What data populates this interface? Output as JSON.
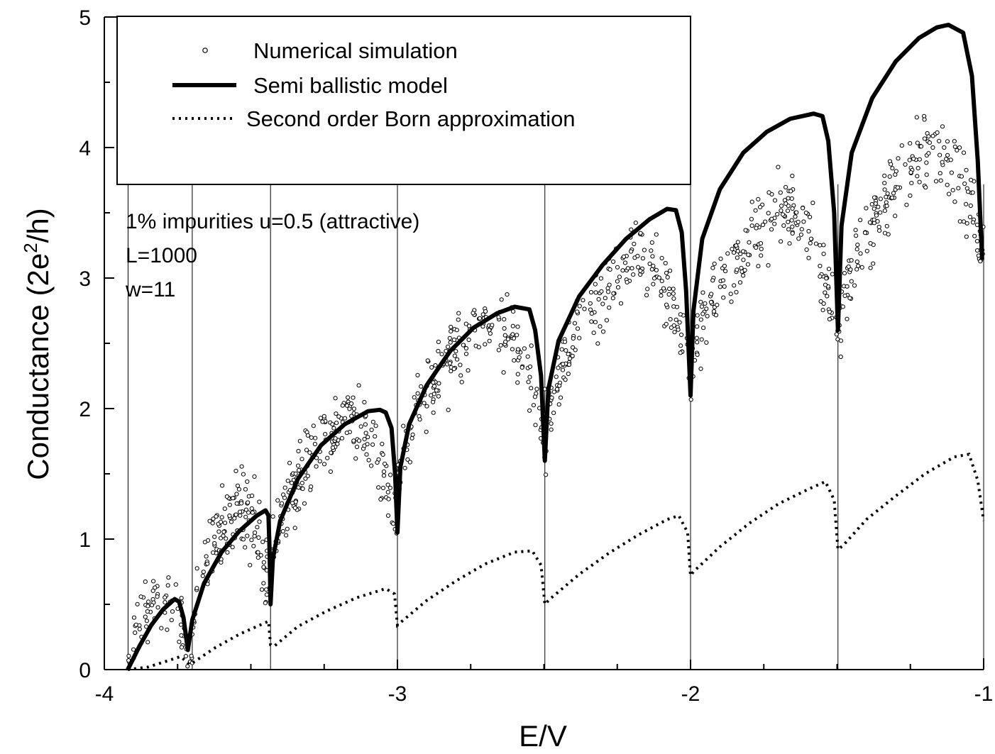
{
  "chart_data": {
    "type": "scatter",
    "xlabel": "E/V",
    "ylabel": "Conductance (2e²/h)",
    "xlim": [
      -4,
      -1
    ],
    "ylim": [
      0,
      5
    ],
    "xticks": [
      "-4",
      "-3",
      "-2",
      "-1"
    ],
    "yticks": [
      "0",
      "1",
      "2",
      "3",
      "4",
      "5"
    ],
    "subband_thresholds": [
      -3.919,
      -3.7,
      -3.433,
      -3.0,
      -2.497,
      -2.0,
      -1.497,
      -1.0
    ],
    "legend": {
      "position": "top-left",
      "entries": [
        {
          "label": "Numerical simulation",
          "style": "open-circle"
        },
        {
          "label": "Semi ballistic model",
          "style": "thick-solid"
        },
        {
          "label": "Second order Born approximation",
          "style": "dotted"
        }
      ]
    },
    "annotations": [
      "1% impurities u=0.5 (attractive)",
      "L=1000",
      "w=11"
    ],
    "series": [
      {
        "name": "Semi ballistic model",
        "points": [
          [
            -3.92,
            0.0
          ],
          [
            -3.88,
            0.18
          ],
          [
            -3.84,
            0.34
          ],
          [
            -3.8,
            0.46
          ],
          [
            -3.76,
            0.54
          ],
          [
            -3.745,
            0.52
          ],
          [
            -3.73,
            0.4
          ],
          [
            -3.715,
            0.15
          ],
          [
            -3.7,
            0.38
          ],
          [
            -3.66,
            0.66
          ],
          [
            -3.6,
            0.9
          ],
          [
            -3.54,
            1.06
          ],
          [
            -3.48,
            1.18
          ],
          [
            -3.45,
            1.22
          ],
          [
            -3.44,
            1.18
          ],
          [
            -3.436,
            0.9
          ],
          [
            -3.433,
            0.5
          ],
          [
            -3.425,
            0.85
          ],
          [
            -3.4,
            1.14
          ],
          [
            -3.34,
            1.46
          ],
          [
            -3.26,
            1.72
          ],
          [
            -3.18,
            1.88
          ],
          [
            -3.1,
            1.98
          ],
          [
            -3.06,
            1.99
          ],
          [
            -3.04,
            1.97
          ],
          [
            -3.02,
            1.85
          ],
          [
            -3.008,
            1.5
          ],
          [
            -3.0,
            1.05
          ],
          [
            -2.99,
            1.55
          ],
          [
            -2.96,
            1.88
          ],
          [
            -2.9,
            2.18
          ],
          [
            -2.82,
            2.44
          ],
          [
            -2.74,
            2.62
          ],
          [
            -2.66,
            2.73
          ],
          [
            -2.6,
            2.78
          ],
          [
            -2.55,
            2.76
          ],
          [
            -2.53,
            2.6
          ],
          [
            -2.51,
            2.25
          ],
          [
            -2.497,
            1.6
          ],
          [
            -2.485,
            2.15
          ],
          [
            -2.45,
            2.52
          ],
          [
            -2.38,
            2.86
          ],
          [
            -2.3,
            3.1
          ],
          [
            -2.22,
            3.3
          ],
          [
            -2.14,
            3.45
          ],
          [
            -2.08,
            3.53
          ],
          [
            -2.05,
            3.52
          ],
          [
            -2.03,
            3.35
          ],
          [
            -2.015,
            2.9
          ],
          [
            -2.0,
            2.1
          ],
          [
            -1.99,
            2.75
          ],
          [
            -1.96,
            3.3
          ],
          [
            -1.9,
            3.68
          ],
          [
            -1.82,
            3.96
          ],
          [
            -1.74,
            4.12
          ],
          [
            -1.66,
            4.22
          ],
          [
            -1.58,
            4.26
          ],
          [
            -1.55,
            4.24
          ],
          [
            -1.53,
            4.05
          ],
          [
            -1.51,
            3.5
          ],
          [
            -1.497,
            2.6
          ],
          [
            -1.485,
            3.4
          ],
          [
            -1.45,
            3.96
          ],
          [
            -1.38,
            4.38
          ],
          [
            -1.3,
            4.66
          ],
          [
            -1.22,
            4.84
          ],
          [
            -1.16,
            4.92
          ],
          [
            -1.12,
            4.94
          ],
          [
            -1.07,
            4.88
          ],
          [
            -1.04,
            4.55
          ],
          [
            -1.02,
            3.9
          ],
          [
            -1.005,
            3.14
          ]
        ]
      },
      {
        "name": "Second order Born approximation",
        "points": [
          [
            -3.92,
            0.0
          ],
          [
            -3.85,
            0.02
          ],
          [
            -3.78,
            0.07
          ],
          [
            -3.74,
            0.1
          ],
          [
            -3.71,
            0.04
          ],
          [
            -3.7,
            0.05
          ],
          [
            -3.62,
            0.17
          ],
          [
            -3.54,
            0.27
          ],
          [
            -3.46,
            0.35
          ],
          [
            -3.44,
            0.37
          ],
          [
            -3.433,
            0.19
          ],
          [
            -3.42,
            0.18
          ],
          [
            -3.34,
            0.33
          ],
          [
            -3.24,
            0.45
          ],
          [
            -3.14,
            0.55
          ],
          [
            -3.04,
            0.62
          ],
          [
            -3.01,
            0.58
          ],
          [
            -3.0,
            0.34
          ],
          [
            -2.99,
            0.36
          ],
          [
            -2.9,
            0.53
          ],
          [
            -2.8,
            0.68
          ],
          [
            -2.7,
            0.81
          ],
          [
            -2.6,
            0.9
          ],
          [
            -2.54,
            0.91
          ],
          [
            -2.51,
            0.8
          ],
          [
            -2.497,
            0.5
          ],
          [
            -2.48,
            0.54
          ],
          [
            -2.38,
            0.73
          ],
          [
            -2.28,
            0.89
          ],
          [
            -2.18,
            1.03
          ],
          [
            -2.08,
            1.15
          ],
          [
            -2.04,
            1.18
          ],
          [
            -2.01,
            1.05
          ],
          [
            -2.0,
            0.72
          ],
          [
            -1.99,
            0.75
          ],
          [
            -1.9,
            0.94
          ],
          [
            -1.8,
            1.12
          ],
          [
            -1.7,
            1.27
          ],
          [
            -1.6,
            1.38
          ],
          [
            -1.54,
            1.44
          ],
          [
            -1.51,
            1.3
          ],
          [
            -1.497,
            0.92
          ],
          [
            -1.48,
            0.95
          ],
          [
            -1.4,
            1.15
          ],
          [
            -1.3,
            1.33
          ],
          [
            -1.2,
            1.5
          ],
          [
            -1.1,
            1.63
          ],
          [
            -1.05,
            1.65
          ],
          [
            -1.02,
            1.45
          ],
          [
            -1.0,
            1.14
          ]
        ]
      },
      {
        "name": "Numerical simulation",
        "segments": [
          {
            "from": -3.92,
            "to": -3.7,
            "start": 0.05,
            "peak": 0.55,
            "end": 0.05,
            "spread": 0.3,
            "count": 70
          },
          {
            "from": -3.7,
            "to": -3.433,
            "start": 0.3,
            "peak": 1.22,
            "end": 0.6,
            "spread": 0.35,
            "count": 130
          },
          {
            "from": -3.433,
            "to": -3.0,
            "start": 0.7,
            "peak": 1.95,
            "end": 1.1,
            "spread": 0.3,
            "count": 190
          },
          {
            "from": -3.0,
            "to": -2.497,
            "start": 1.3,
            "peak": 2.7,
            "end": 1.8,
            "spread": 0.3,
            "count": 190
          },
          {
            "from": -2.497,
            "to": -2.0,
            "start": 1.6,
            "peak": 3.2,
            "end": 2.3,
            "spread": 0.3,
            "count": 190
          },
          {
            "from": -2.0,
            "to": -1.497,
            "start": 2.1,
            "peak": 3.55,
            "end": 2.6,
            "spread": 0.3,
            "count": 190
          },
          {
            "from": -1.497,
            "to": -1.0,
            "start": 2.4,
            "peak": 4.0,
            "end": 3.2,
            "spread": 0.32,
            "count": 190
          }
        ]
      }
    ]
  }
}
